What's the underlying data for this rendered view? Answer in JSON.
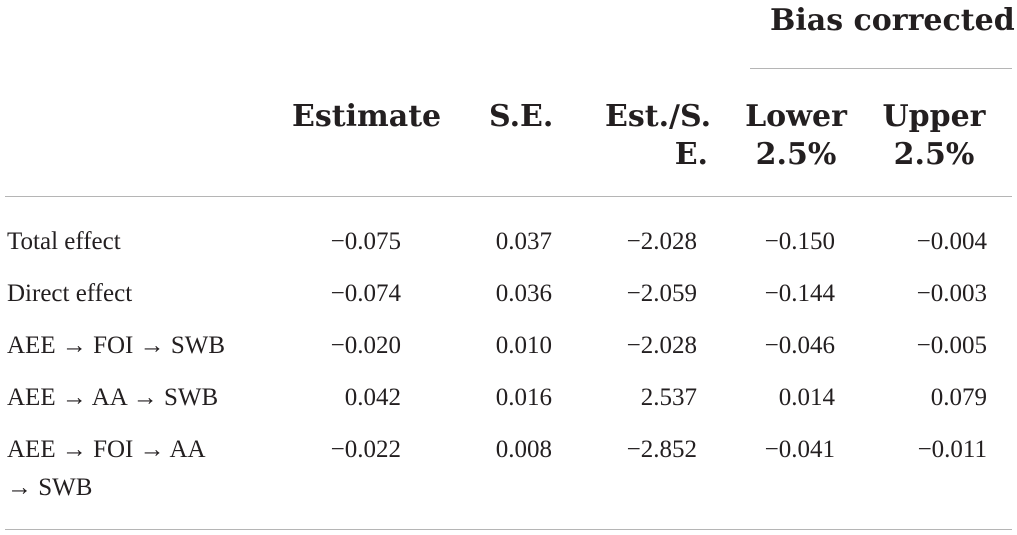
{
  "header": {
    "group_label": "Bias corrected",
    "columns": {
      "estimate": "Estimate",
      "se": "S.E.",
      "est_se_line1": "Est./S.",
      "est_se_line2": "E.",
      "lower_line1": "Lower",
      "lower_line2": "2.5%",
      "upper_line1": "Upper",
      "upper_line2": "2.5%"
    }
  },
  "rows": [
    {
      "label_line1": "Total effect",
      "label_line2": "",
      "estimate": "−0.075",
      "se": "0.037",
      "est_se": "−2.028",
      "lower": "−0.150",
      "upper": "−0.004"
    },
    {
      "label_line1": "Direct effect",
      "label_line2": "",
      "estimate": "−0.074",
      "se": "0.036",
      "est_se": "−2.059",
      "lower": "−0.144",
      "upper": "−0.003"
    },
    {
      "label_line1": "AEE → FOI → SWB",
      "label_line2": "",
      "estimate": "−0.020",
      "se": "0.010",
      "est_se": "−2.028",
      "lower": "−0.046",
      "upper": "−0.005"
    },
    {
      "label_line1": "AEE → AA → SWB",
      "label_line2": "",
      "estimate": "0.042",
      "se": "0.016",
      "est_se": "2.537",
      "lower": "0.014",
      "upper": "0.079"
    },
    {
      "label_line1": "AEE → FOI → AA",
      "label_line2": "→ SWB",
      "estimate": "−0.022",
      "se": "0.008",
      "est_se": "−2.852",
      "lower": "−0.041",
      "upper": "−0.011"
    }
  ]
}
